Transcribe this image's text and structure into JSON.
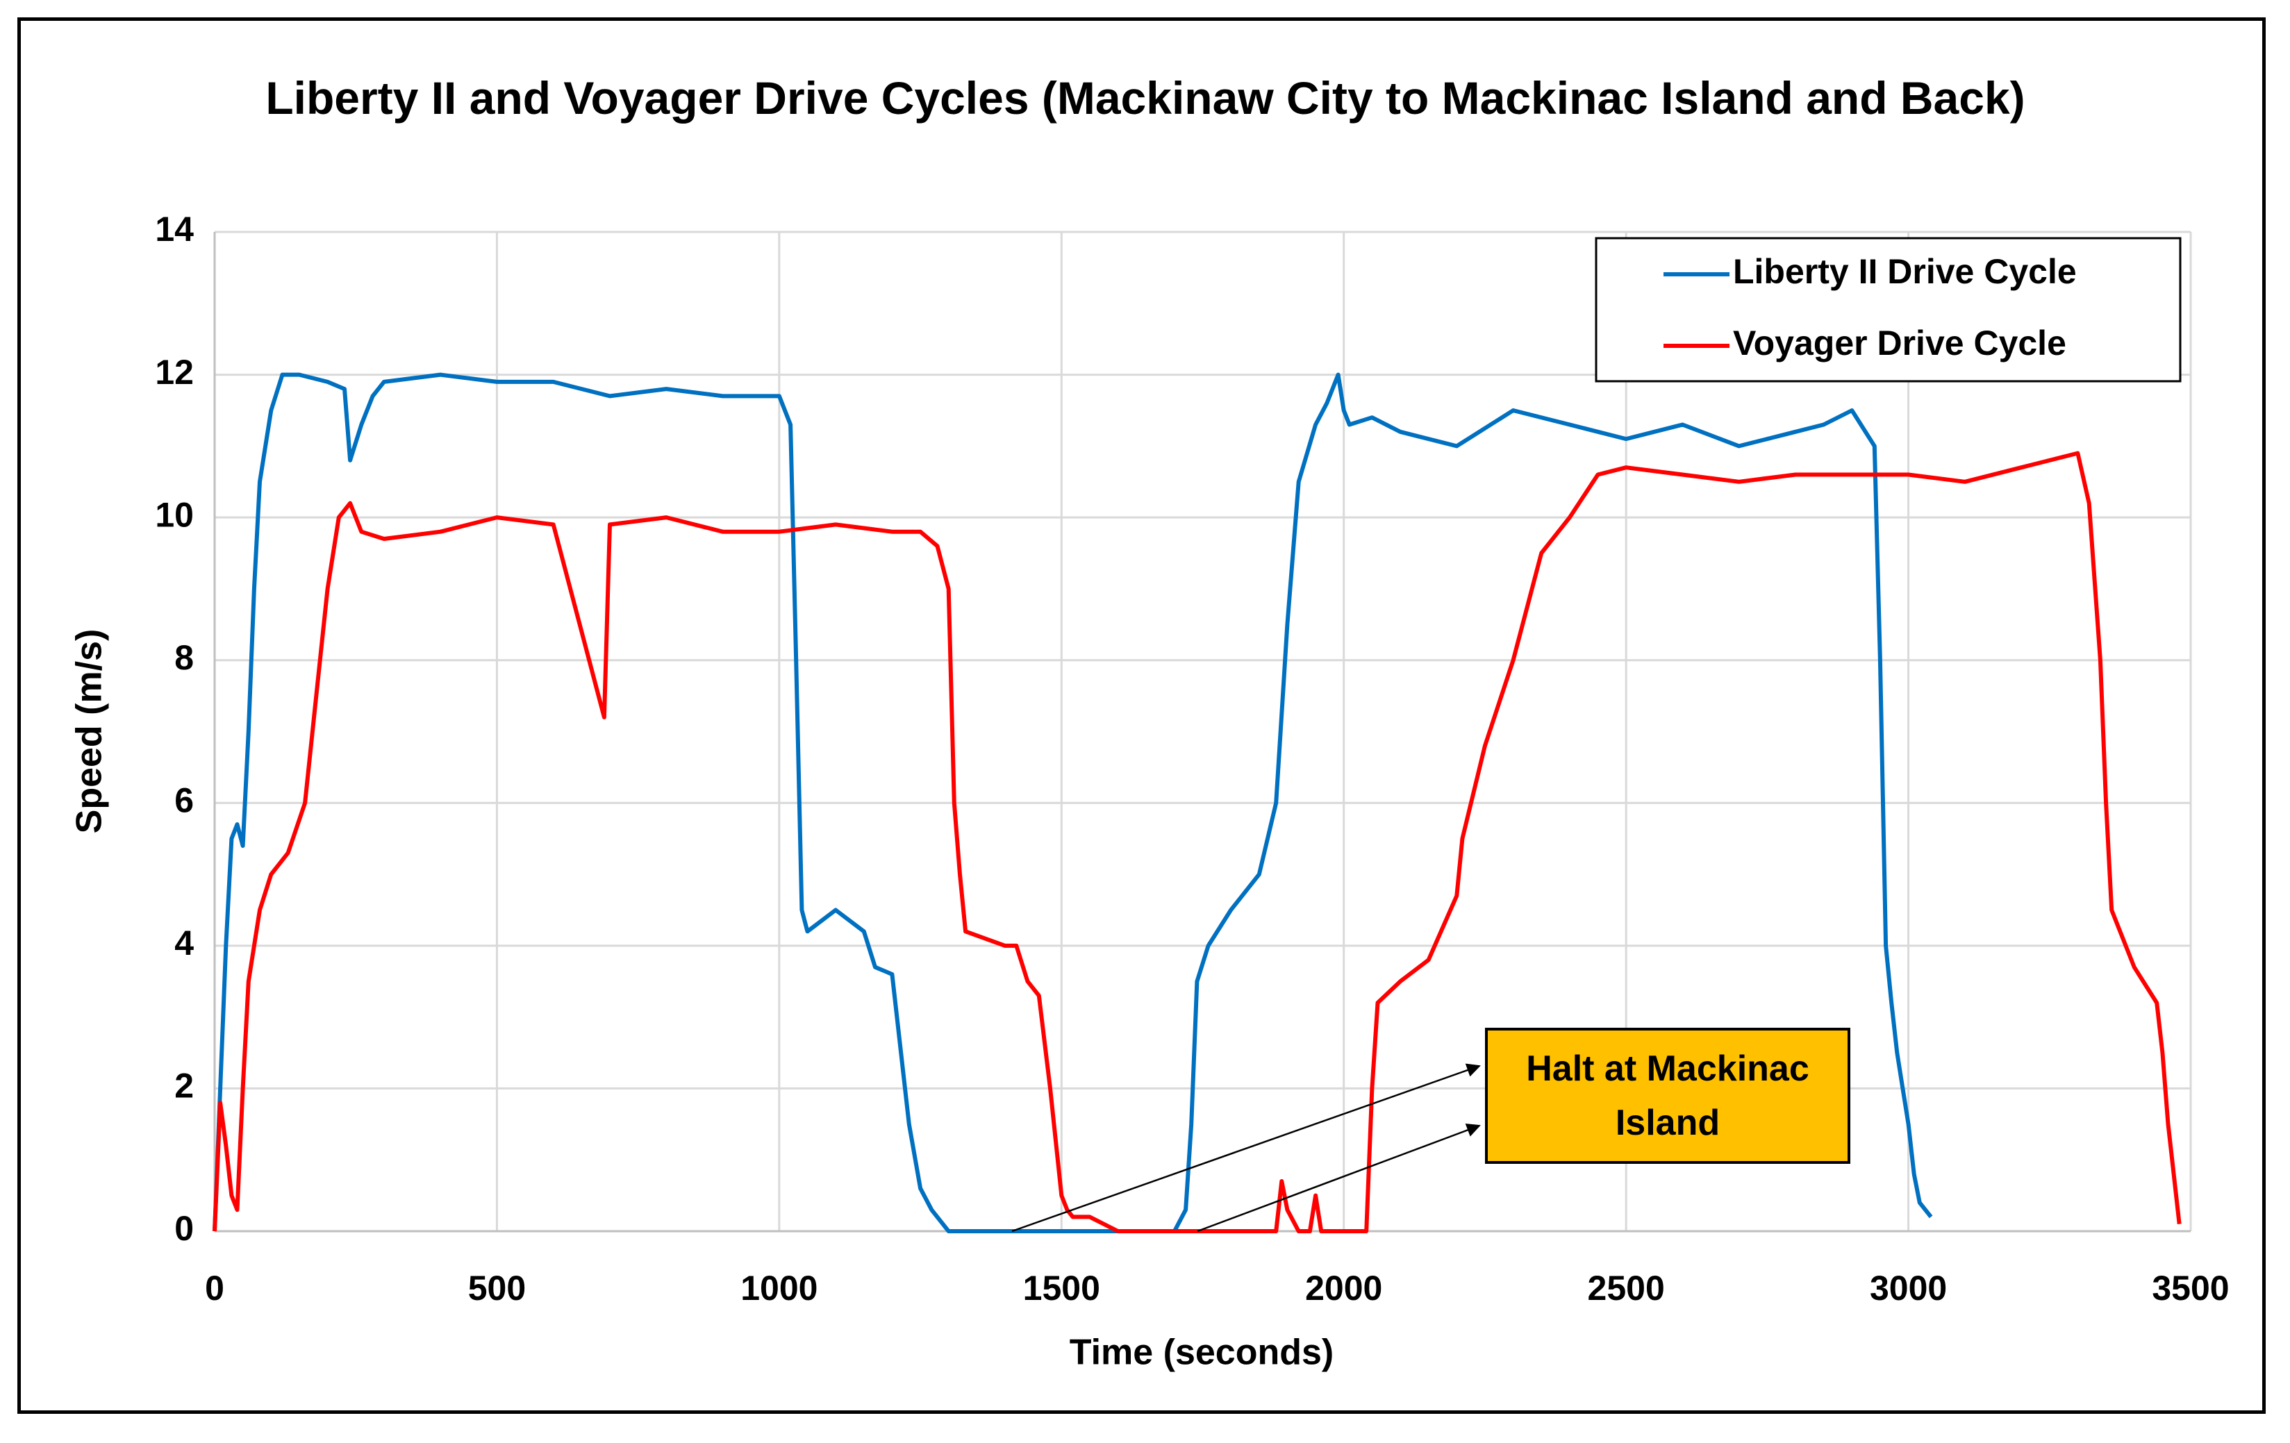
{
  "chart_data": {
    "type": "line",
    "title": "Liberty II and Voyager Drive Cycles (Mackinaw City to Mackinac Island and Back)",
    "xlabel": "Time (seconds)",
    "ylabel": "Speed (m/s)",
    "xlim": [
      0,
      3500
    ],
    "xticks": [
      0,
      500,
      1000,
      1500,
      2000,
      2500,
      3000,
      3500
    ],
    "ylim": [
      0,
      14
    ],
    "yticks": [
      0,
      2,
      4,
      6,
      8,
      10,
      12,
      14
    ],
    "grid": true,
    "legend": "upper right",
    "annotation": "Halt at Mackinac Island",
    "series": [
      {
        "name": "Liberty II Drive Cycle",
        "color": "#0070c0",
        "x": [
          0,
          10,
          20,
          30,
          40,
          50,
          60,
          70,
          80,
          100,
          120,
          150,
          200,
          230,
          240,
          260,
          280,
          300,
          400,
          500,
          600,
          700,
          800,
          900,
          1000,
          1020,
          1030,
          1040,
          1050,
          1100,
          1150,
          1170,
          1200,
          1230,
          1250,
          1270,
          1300,
          1400,
          1500,
          1600,
          1700,
          1720,
          1730,
          1740,
          1760,
          1800,
          1850,
          1880,
          1900,
          1920,
          1950,
          1970,
          1990,
          2000,
          2010,
          2050,
          2100,
          2200,
          2300,
          2400,
          2500,
          2600,
          2700,
          2800,
          2850,
          2900,
          2940,
          2950,
          2960,
          2970,
          2980,
          2990,
          3000,
          3010,
          3020,
          3040
        ],
        "values": [
          0,
          2,
          4,
          5.5,
          5.7,
          5.4,
          7,
          9,
          10.5,
          11.5,
          12,
          12,
          11.9,
          11.8,
          10.8,
          11.3,
          11.7,
          11.9,
          12,
          11.9,
          11.9,
          11.7,
          11.8,
          11.7,
          11.7,
          11.3,
          8,
          4.5,
          4.2,
          4.5,
          4.2,
          3.7,
          3.6,
          1.5,
          0.6,
          0.3,
          0,
          0,
          0,
          0,
          0,
          0.3,
          1.5,
          3.5,
          4,
          4.5,
          5,
          6,
          8.5,
          10.5,
          11.3,
          11.6,
          12,
          11.5,
          11.3,
          11.4,
          11.2,
          11,
          11.5,
          11.3,
          11.1,
          11.3,
          11,
          11.2,
          11.3,
          11.5,
          11,
          8,
          4,
          3.2,
          2.5,
          2,
          1.5,
          0.8,
          0.4,
          0.2
        ]
      },
      {
        "name": "Voyager Drive Cycle",
        "color": "#ff0000",
        "x": [
          0,
          10,
          20,
          30,
          40,
          50,
          60,
          80,
          100,
          130,
          160,
          180,
          200,
          220,
          240,
          260,
          300,
          400,
          500,
          600,
          690,
          700,
          800,
          900,
          1000,
          1100,
          1200,
          1250,
          1280,
          1300,
          1310,
          1320,
          1330,
          1400,
          1420,
          1440,
          1460,
          1480,
          1500,
          1510,
          1520,
          1550,
          1600,
          1700,
          1800,
          1880,
          1890,
          1900,
          1920,
          1940,
          1950,
          1960,
          2000,
          2040,
          2050,
          2060,
          2100,
          2150,
          2200,
          2210,
          2250,
          2300,
          2350,
          2400,
          2450,
          2500,
          2600,
          2700,
          2800,
          2900,
          3000,
          3100,
          3200,
          3300,
          3320,
          3340,
          3350,
          3360,
          3400,
          3440,
          3450,
          3460,
          3480
        ],
        "values": [
          0,
          1.8,
          1.2,
          0.5,
          0.3,
          2,
          3.5,
          4.5,
          5,
          5.3,
          6,
          7.5,
          9,
          10,
          10.2,
          9.8,
          9.7,
          9.8,
          10,
          9.9,
          7.2,
          9.9,
          10,
          9.8,
          9.8,
          9.9,
          9.8,
          9.8,
          9.6,
          9,
          6,
          5,
          4.2,
          4,
          4,
          3.5,
          3.3,
          2,
          0.5,
          0.3,
          0.2,
          0.2,
          0,
          0,
          0,
          0,
          0.7,
          0.3,
          0,
          0,
          0.5,
          0,
          0,
          0,
          2,
          3.2,
          3.5,
          3.8,
          4.7,
          5.5,
          6.8,
          8,
          9.5,
          10,
          10.6,
          10.7,
          10.6,
          10.5,
          10.6,
          10.6,
          10.6,
          10.5,
          10.7,
          10.9,
          10.2,
          8,
          6,
          4.5,
          3.7,
          3.2,
          2.5,
          1.5,
          0.1
        ]
      }
    ]
  }
}
